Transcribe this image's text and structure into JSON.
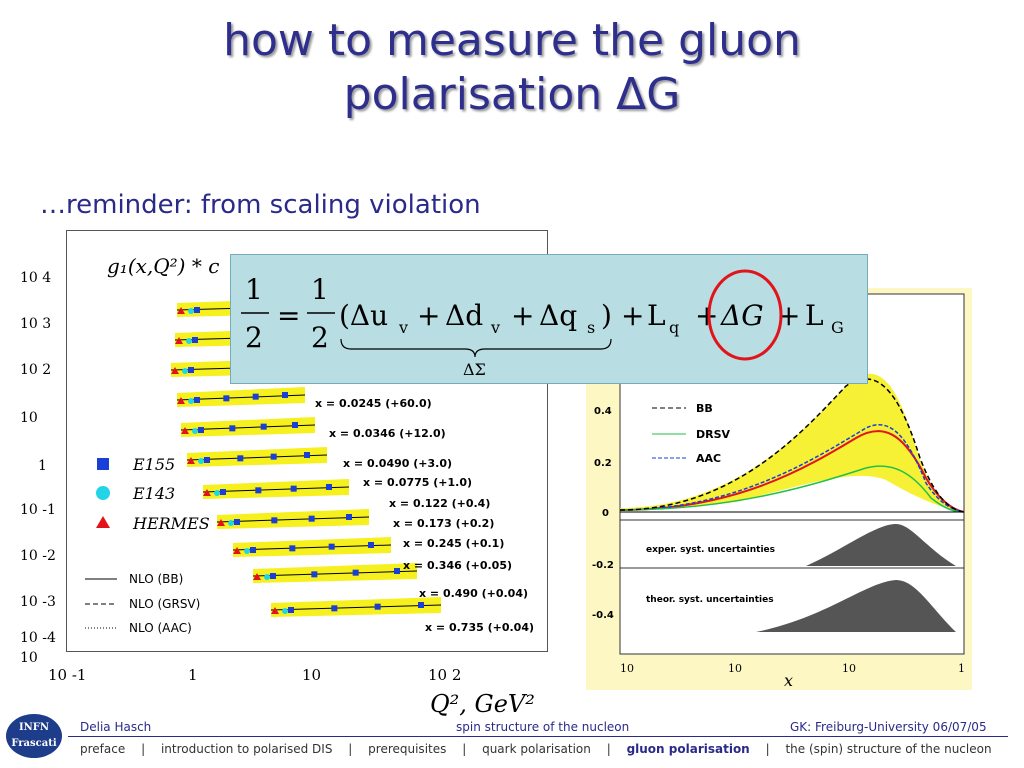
{
  "title": {
    "line1": "how to measure the gluon",
    "line2": "polarisation ΔG"
  },
  "subtitle": "…reminder: from scaling violation",
  "formula": {
    "half": "1",
    "den": "2",
    "eq": "=",
    "group_open": "(Δu",
    "v1": "v",
    "plus": "+",
    "dd": "Δd",
    "v2": "v",
    "dq": "Δq",
    "s": "s",
    "close": ")",
    "Lq": "L",
    "q": "q",
    "dG": "ΔG",
    "LG": "L",
    "G": "G",
    "sigma": "ΔΣ"
  },
  "left_plot": {
    "title": "g₁(x,Q²) * c",
    "ytick_labels": [
      "10 4",
      "10 3",
      "10 2",
      "10",
      "1",
      "10 -1",
      "10 -2",
      "10 -3",
      "10 -4",
      "10"
    ],
    "xtick_labels": [
      "10 -1",
      "1",
      "10",
      "10 2"
    ],
    "xlabel": "Q², GeV²",
    "legend": [
      "E155",
      "E143",
      "HERMES"
    ],
    "nlo": [
      "NLO (BB)",
      "NLO (GRSV)",
      "NLO (AAC)"
    ],
    "bins": [
      "x = 0.0245 (+60.0)",
      "x = 0.0346 (+12.0)",
      "x = 0.0490 (+3.0)",
      "x = 0.0775 (+1.0)",
      "x = 0.122 (+0.4)",
      "x = 0.173 (+0.2)",
      "x = 0.245 (+0.1)",
      "x = 0.346 (+0.05)",
      "x = 0.490 (+0.04)",
      "x = 0.735 (+0.04)"
    ],
    "colors": {
      "e155": "#1a3fd6",
      "e143": "#22d4e6",
      "hermes": "#e0141a",
      "band": "#f5f01e"
    }
  },
  "right_plot": {
    "yticks": [
      "0.4",
      "0.2",
      "0",
      "-0.2",
      "-0.4"
    ],
    "xticks": [
      "10",
      "10",
      "10",
      "1"
    ],
    "xlabel": "x",
    "legend": [
      "BB",
      "DRSV",
      "AAC"
    ],
    "sub_labels": [
      "exper. syst. uncertainties",
      "theor. syst. uncertainties"
    ]
  },
  "footer": {
    "author": "Delia Hasch",
    "topic": "spin structure of the nucleon",
    "venue": "GK: Freiburg-University 06/07/05",
    "logo_top": "INFN",
    "logo_bottom": "Frascati",
    "nav": [
      "preface",
      "|",
      "introduction to polarised DIS",
      "|",
      "prerequisites",
      "|",
      "quark polarisation",
      "|",
      "gluon polarisation",
      "|",
      "the (spin) structure of the nucleon"
    ]
  }
}
